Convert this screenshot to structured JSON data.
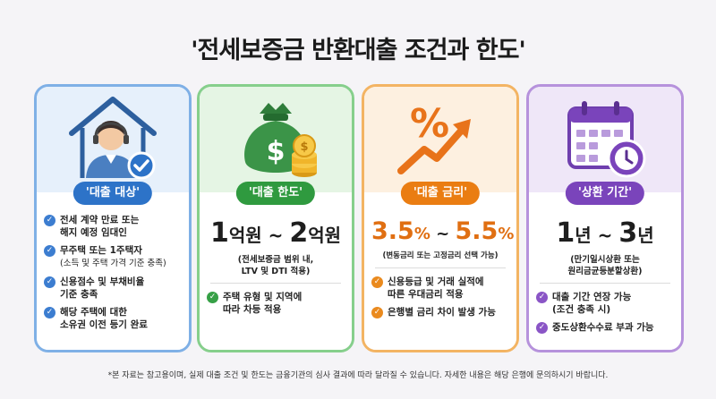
{
  "title": "'전세보증금 반환대출 조건과 한도'",
  "colors": {
    "blue": "#2d73c8",
    "green": "#2f9a3f",
    "orange": "#ea7d12",
    "purple": "#7a44bb"
  },
  "cards": [
    {
      "icon": "house-person-check-icon",
      "badge": "'대출 대상'",
      "items": [
        {
          "line1": "전세 계약 만료 또는",
          "line2": "해지 예정 임대인"
        },
        {
          "line1": "무주택 또는 1주택자",
          "line2": "(소득 및 주택 가격 기준 충족)"
        },
        {
          "line1": "신용점수 및 부채비율",
          "line2": "기준 충족"
        },
        {
          "line1": "해당 주택에 대한",
          "line2": "소유권 이전 등기 완료"
        }
      ]
    },
    {
      "icon": "money-bag-coins-icon",
      "badge": "'대출 한도'",
      "big": {
        "num1": "1",
        "unit1": "억원",
        "sep": " ~ ",
        "num2": "2",
        "unit2": "억원"
      },
      "note1": "(전세보증금 범위 내,",
      "note2": "LTV 및 DTI 적용)",
      "items": [
        {
          "line1": "주택 유형 및 지역에",
          "line2": "따라 차등 적용"
        }
      ]
    },
    {
      "icon": "percent-trend-arrow-icon",
      "badge": "'대출 금리'",
      "big": {
        "num1": "3.5",
        "unit1": "%",
        "sep": " ~ ",
        "num2": "5.5",
        "unit2": "%"
      },
      "note1": "(변동금리 또는 고정금리 선택 가능)",
      "items": [
        {
          "line1": "신용등급 및 거래 실적에",
          "line2": "따른 우대금리 적용"
        },
        {
          "line1": "은행별 금리 차이 발생 가능",
          "line2": ""
        }
      ]
    },
    {
      "icon": "calendar-clock-icon",
      "badge": "'상환 기간'",
      "big": {
        "num1": "1",
        "unit1": "년",
        "sep": " ~ ",
        "num2": "3",
        "unit2": "년"
      },
      "note1": "(만기일시상환 또는",
      "note2": "원리금균등분할상환)",
      "items": [
        {
          "line1": "대출 기간 연장 가능",
          "line2": "(조건 충족 시)"
        },
        {
          "line1": "중도상환수수료 부과 가능",
          "line2": ""
        }
      ]
    }
  ],
  "footnote": "*본 자료는 참고용이며, 실제 대출 조건 및 한도는 금융기관의 심사 결과에 따라 달라질 수 있습니다. 자세한 내용은 해당 은행에 문의하시기 바랍니다."
}
